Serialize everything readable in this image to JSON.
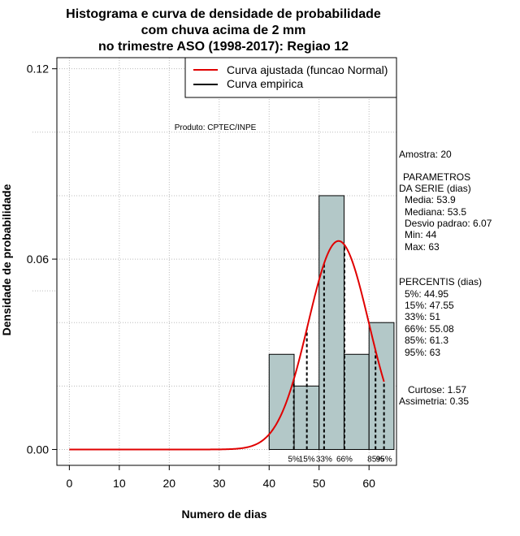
{
  "chart_data": {
    "type": "bar",
    "title": [
      "Histograma e curva de densidade de probabilidade",
      "com chuva acima de 2 mm",
      "no trimestre ASO (1998-2017): Regiao 12"
    ],
    "xlabel": "Numero de dias",
    "ylabel": "Densidade de probabilidade",
    "xlim": [
      -2.5,
      65.5
    ],
    "ylim": [
      -0.005,
      0.1235
    ],
    "x_ticks": [
      0,
      10,
      20,
      30,
      40,
      50,
      60
    ],
    "y_ticks": [
      0.0,
      0.06,
      0.12
    ],
    "y_tick_labels": [
      "0.00",
      "0.06",
      "0.12"
    ],
    "grid_x": [
      0,
      10,
      20,
      30,
      40,
      50,
      60
    ],
    "grid_y": [
      0.0,
      0.02,
      0.04,
      0.06,
      0.08,
      0.1,
      0.12
    ],
    "histogram": {
      "bins": [
        {
          "start": 40,
          "end": 45,
          "density": 0.03
        },
        {
          "start": 45,
          "end": 50,
          "density": 0.02
        },
        {
          "start": 50,
          "end": 55,
          "density": 0.08
        },
        {
          "start": 55,
          "end": 60,
          "density": 0.03
        },
        {
          "start": 60,
          "end": 65,
          "density": 0.04
        }
      ],
      "fill": "#b3c8c8"
    },
    "fitted_curve": {
      "name": "Curva ajustada (funcao Normal)",
      "color": "#e00000",
      "mean": 53.9,
      "sd": 6.07,
      "x_from": 0,
      "x_to": 63
    },
    "empirical_curve": {
      "name": "Curva empirica",
      "color": "#000000"
    },
    "percentile_lines": [
      {
        "label": "5%",
        "x": 44.95
      },
      {
        "label": "15%",
        "x": 47.55
      },
      {
        "label": "33%",
        "x": 51
      },
      {
        "label": "66%",
        "x": 55.08
      },
      {
        "label": "85%",
        "x": 61.3
      },
      {
        "label": "95%",
        "x": 63
      }
    ],
    "legend_position": "top-right",
    "annotation": "Produto: CPTEC/INPE"
  },
  "side_panel": {
    "sample": "Amostra: 20",
    "params_title_1": "PARAMETROS",
    "params_title_2": "DA SERIE (dias)",
    "params": [
      "Media: 53.9",
      "Mediana: 53.5",
      "Desvio padrao: 6.07",
      "Min: 44",
      "Max: 63"
    ],
    "percentis_title": "PERCENTIS (dias)",
    "percentis": [
      "5%: 44.95",
      "15%: 47.55",
      "33%: 51",
      "66%: 55.08",
      "85%: 61.3",
      "95%: 63"
    ],
    "curtose": "Curtose: 1.57",
    "assimetria": "Assimetria: 0.35"
  }
}
